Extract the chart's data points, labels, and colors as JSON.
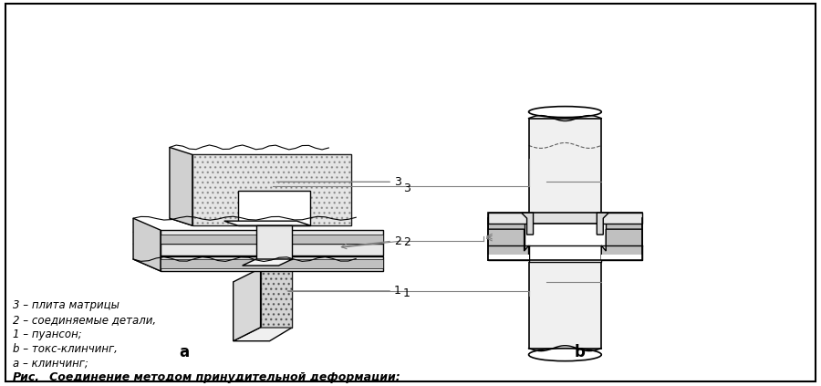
{
  "title_bold": "Рис.",
  "title_rest": "   Соединение методом принудительной деформации:",
  "legend_lines": [
    "a – клинчинг;",
    "b – токс-клинчинг,",
    "1 – пуансон;",
    "2 – соединяемые детали,",
    "3 – плита матрицы"
  ],
  "label_a": "a",
  "label_b": "b",
  "label_1": "1",
  "label_2": "2",
  "label_3": "3",
  "bg_color": "#ffffff",
  "border_color": "#000000",
  "fill_light": "#e8e8e8",
  "fill_dark": "#c0c0c0",
  "fill_hatched": "#d0d0d0",
  "line_color": "#000000",
  "arrow_color": "#808080"
}
